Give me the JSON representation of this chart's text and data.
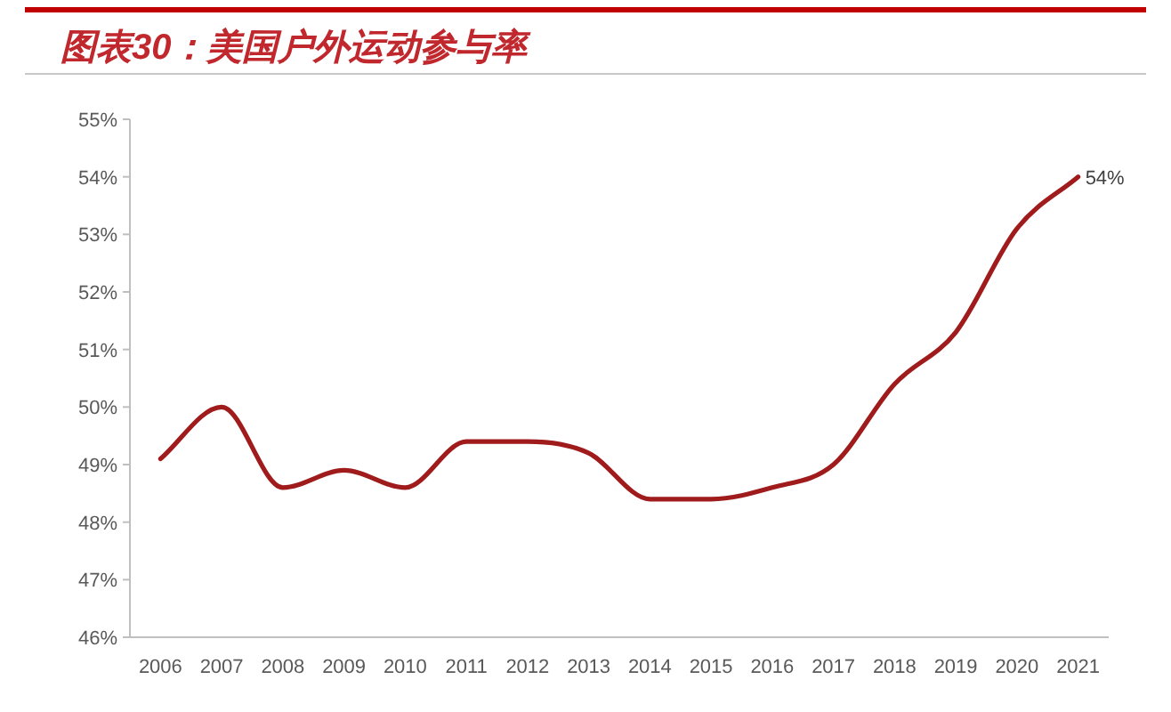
{
  "chart_data": {
    "type": "line",
    "title": "图表30：美国户外运动参与率",
    "categories": [
      "2006",
      "2007",
      "2008",
      "2009",
      "2010",
      "2011",
      "2012",
      "2013",
      "2014",
      "2015",
      "2016",
      "2017",
      "2018",
      "2019",
      "2020",
      "2021"
    ],
    "series": [
      {
        "color": "#a01c1c",
        "values": [
          49.1,
          50.0,
          48.6,
          48.9,
          48.6,
          49.4,
          49.4,
          49.2,
          48.4,
          48.4,
          48.6,
          49.0,
          50.4,
          51.3,
          53.1,
          54.0
        ],
        "value_labels": [
          null,
          null,
          null,
          null,
          null,
          null,
          null,
          null,
          null,
          null,
          null,
          null,
          null,
          null,
          null,
          "54%"
        ]
      }
    ],
    "ylim": [
      46,
      55
    ],
    "yticks": [
      {
        "value": 46,
        "label": "46%"
      },
      {
        "value": 47,
        "label": "47%"
      },
      {
        "value": 48,
        "label": "48%"
      },
      {
        "value": 49,
        "label": "49%"
      },
      {
        "value": 50,
        "label": "50%"
      },
      {
        "value": 51,
        "label": "51%"
      },
      {
        "value": 52,
        "label": "52%"
      },
      {
        "value": 53,
        "label": "53%"
      },
      {
        "value": 54,
        "label": "54%"
      },
      {
        "value": 55,
        "label": "55%"
      }
    ],
    "line_style": "solid"
  }
}
